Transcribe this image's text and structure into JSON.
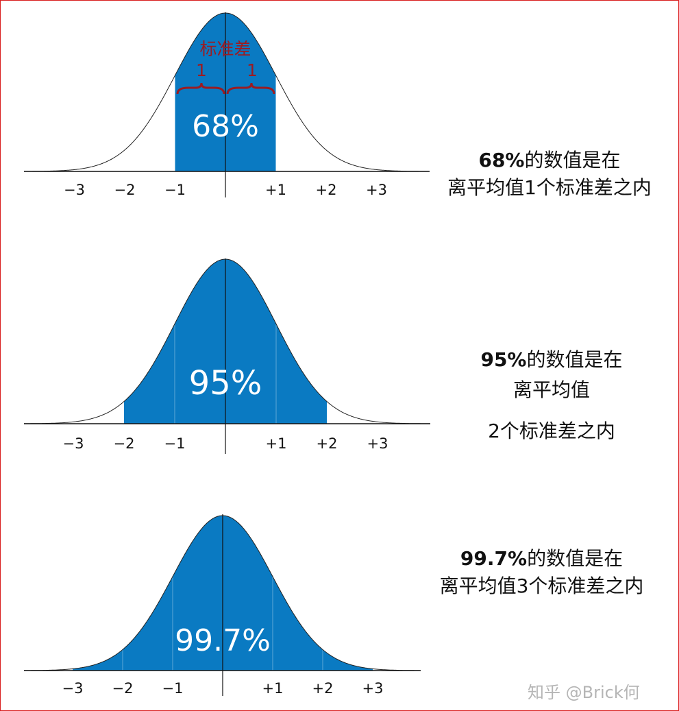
{
  "panels": [
    {
      "percent_label": "68%",
      "sigma_range": 1,
      "ticks": [
        "−3",
        "−2",
        "−1",
        "+1",
        "+2",
        "+3"
      ],
      "brace_title": "标准差",
      "brace_left_label": "1",
      "brace_right_label": "1",
      "caption_bold": "68%",
      "caption_rest_line1": "的数值是在",
      "caption_line2": "离平均值1个标准差之内"
    },
    {
      "percent_label": "95%",
      "sigma_range": 2,
      "ticks": [
        "−3",
        "−2",
        "−1",
        "+1",
        "+2",
        "+3"
      ],
      "caption_bold": "95%",
      "caption_rest_line1": "的数值是在",
      "caption_line2": "离平均值",
      "caption_line3": "2个标准差之内"
    },
    {
      "percent_label": "99.7%",
      "sigma_range": 3,
      "ticks": [
        "−3",
        "−2",
        "−1",
        "+1",
        "+2",
        "+3"
      ],
      "caption_bold": "99.7%",
      "caption_rest_line1": "的数值是在",
      "caption_line2": "离平均值3个标准差之内"
    }
  ],
  "watermark": "知乎 @Brick何",
  "colors": {
    "fill": "#0a7ac2",
    "curve": "#222222",
    "brace": "#9b1c22",
    "frame": "#d91c1c"
  }
}
